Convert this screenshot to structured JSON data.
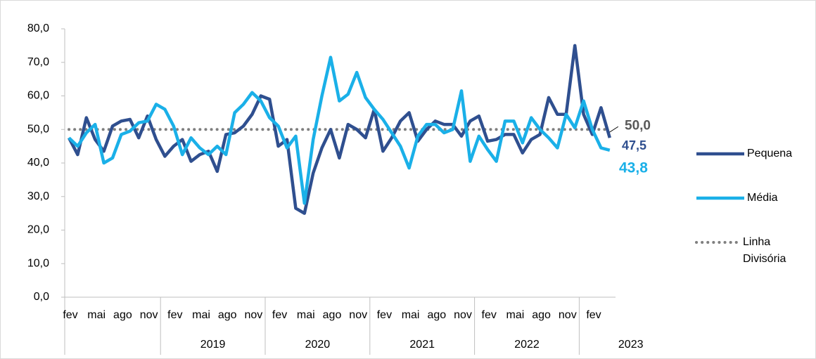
{
  "chart_data": {
    "type": "line",
    "categories": [
      "fev",
      null,
      null,
      "mai",
      null,
      null,
      "ago",
      null,
      null,
      "nov",
      null,
      null,
      "fev",
      null,
      null,
      "mai",
      null,
      null,
      "ago",
      null,
      null,
      "nov",
      null,
      null,
      "fev",
      null,
      null,
      "mai",
      null,
      null,
      "ago",
      null,
      null,
      "nov",
      null,
      null,
      "fev",
      null,
      null,
      "mai",
      null,
      null,
      "ago",
      null,
      null,
      "nov",
      null,
      null,
      "fev",
      null,
      null,
      "mai",
      null,
      null,
      "ago",
      null,
      null,
      "nov",
      null,
      null,
      "fev",
      null,
      null
    ],
    "year_labels": [
      null,
      null,
      null,
      null,
      null,
      null,
      null,
      null,
      null,
      null,
      null,
      null,
      null,
      null,
      null,
      null,
      null,
      "2019",
      null,
      null,
      null,
      null,
      null,
      null,
      null,
      null,
      null,
      null,
      null,
      "2020",
      null,
      null,
      null,
      null,
      null,
      null,
      null,
      null,
      null,
      null,
      null,
      "2021",
      null,
      null,
      null,
      null,
      null,
      null,
      null,
      null,
      null,
      null,
      null,
      "2022",
      null,
      null,
      null,
      null,
      null,
      null,
      null,
      null,
      "2023",
      null,
      null
    ],
    "series": [
      {
        "name": "Pequena",
        "color": "#2f4f8f",
        "values": [
          47.5,
          42.5,
          53.5,
          47,
          43.5,
          51,
          52.5,
          53,
          47.5,
          54,
          47,
          42,
          45,
          47,
          40.5,
          42.5,
          43.5,
          37.5,
          48.5,
          49,
          51,
          54.5,
          60,
          59,
          45,
          47,
          26.5,
          25,
          37,
          44.5,
          50,
          41.5,
          51.5,
          50,
          47.5,
          56,
          43.5,
          47.5,
          52.5,
          55,
          46.5,
          50,
          52.5,
          51.5,
          51.5,
          48,
          52.5,
          54,
          46.5,
          47,
          48.5,
          48.5,
          43,
          47,
          48.5,
          59.5,
          54.5,
          54.5,
          75,
          54.5,
          48.5,
          56.5,
          47.5
        ],
        "last_label": "47,5"
      },
      {
        "name": "Média",
        "color": "#1ab0e8",
        "values": [
          47.5,
          45,
          49,
          51.5,
          40,
          41.5,
          48.5,
          49.5,
          52,
          52.5,
          57.5,
          56,
          51,
          42.5,
          47.5,
          44.5,
          42.5,
          45,
          42.5,
          55,
          57.5,
          61,
          58.5,
          53.5,
          51,
          44.5,
          48,
          28,
          47,
          60,
          71.5,
          58.5,
          60.5,
          67,
          59.5,
          56,
          53,
          49,
          45,
          38.5,
          48,
          51.5,
          51.5,
          49,
          50,
          61.5,
          40.5,
          48,
          44,
          40.5,
          52.5,
          52.5,
          46,
          53.5,
          50,
          47.5,
          44.5,
          54.5,
          50.5,
          58.5,
          50,
          44.5,
          43.8
        ],
        "last_label": "43,8"
      }
    ],
    "reference_line": {
      "name": "Linha Divisória",
      "value": 50,
      "label": "50,0",
      "color": "#7f7f7f"
    },
    "ylim": [
      0,
      80
    ],
    "yticks": [
      {
        "value": 0,
        "label": "0,0"
      },
      {
        "value": 10,
        "label": "10,0"
      },
      {
        "value": 20,
        "label": "20,0"
      },
      {
        "value": 30,
        "label": "30,0"
      },
      {
        "value": 40,
        "label": "40,0"
      },
      {
        "value": 50,
        "label": "50,0"
      },
      {
        "value": 60,
        "label": "60,0"
      },
      {
        "value": 70,
        "label": "70,0"
      },
      {
        "value": 80,
        "label": "80,0"
      }
    ],
    "legend": "right"
  }
}
